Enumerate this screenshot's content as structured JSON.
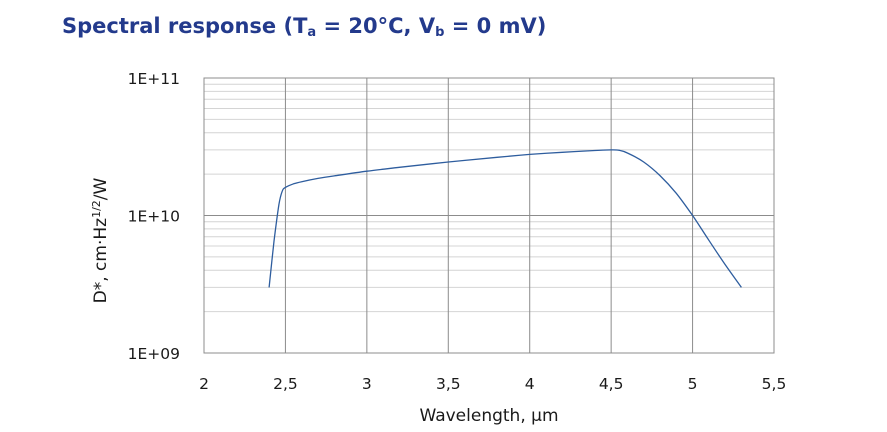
{
  "title": {
    "prefix": "Spectral response (T",
    "sub1": "a",
    "mid": " = 20°C, V",
    "sub2": "b",
    "suffix": " = 0 mV)"
  },
  "chart_data": {
    "type": "line",
    "title": "Spectral response (Ta = 20°C, Vb = 0 mV)",
    "xlabel": "Wavelength, µm",
    "ylabel": "D*, cm·Hz1/2/W",
    "ylabel_parts": {
      "base": "D*, cm·Hz",
      "sup": "1/2",
      "tail": "/W"
    },
    "xlim": [
      2,
      5.5
    ],
    "ylim": [
      1000000000.0,
      100000000000.0
    ],
    "yscale": "log",
    "grid": true,
    "x_ticks": [
      2,
      2.5,
      3,
      3.5,
      4,
      4.5,
      5,
      5.5
    ],
    "x_tick_labels": [
      "2",
      "2,5",
      "3",
      "3,5",
      "4",
      "4,5",
      "5",
      "5,5"
    ],
    "y_ticks": [
      1000000000.0,
      10000000000.0,
      100000000000.0
    ],
    "y_tick_labels": [
      "1E+09",
      "1E+10",
      "1E+11"
    ],
    "line_color": "#2e5d9e",
    "series": [
      {
        "x": [
          2.4,
          2.43,
          2.46,
          2.48,
          2.5,
          2.55,
          2.6,
          2.7,
          2.8,
          3.0,
          3.2,
          3.5,
          3.8,
          4.0,
          4.2,
          4.4,
          4.5,
          4.55,
          4.6,
          4.7,
          4.8,
          4.9,
          5.0,
          5.1,
          5.2,
          5.3
        ],
        "y": [
          3000000000.0,
          6500000000.0,
          12000000000.0,
          15000000000.0,
          16000000000.0,
          17000000000.0,
          17600000000.0,
          18600000000.0,
          19400000000.0,
          21000000000.0,
          22400000000.0,
          24500000000.0,
          26500000000.0,
          27800000000.0,
          28800000000.0,
          29700000000.0,
          30000000000.0,
          29800000000.0,
          28500000000.0,
          24500000000.0,
          19500000000.0,
          14500000000.0,
          10000000000.0,
          6600000000.0,
          4400000000.0,
          3000000000.0
        ]
      }
    ]
  }
}
